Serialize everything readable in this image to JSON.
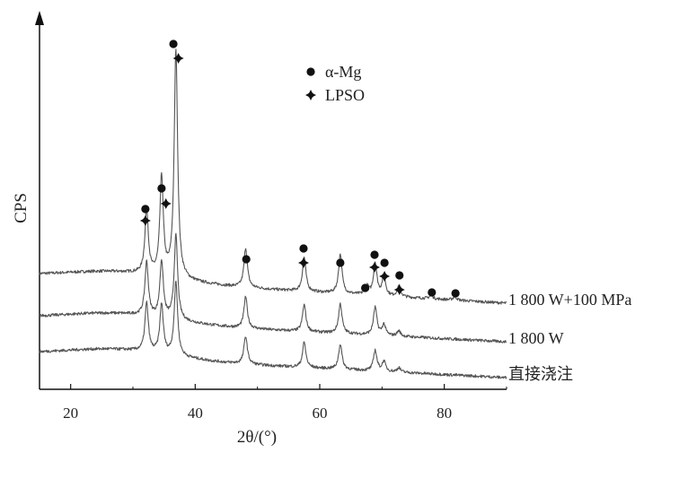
{
  "chart_data": {
    "type": "line",
    "title": "",
    "xlabel": "2θ/(°)",
    "ylabel": "CPS",
    "xlim": [
      15,
      90
    ],
    "x_ticks": [
      20,
      40,
      60,
      80
    ],
    "y_ticks": [],
    "grid": false,
    "legend": {
      "placement": "top-center",
      "entries": [
        {
          "marker": "circle",
          "label": "α-Mg"
        },
        {
          "marker": "diamond-cross",
          "label": "LPSO"
        }
      ]
    },
    "series": [
      {
        "name": "1 800 W+100 MPa",
        "baseline_cps": 130,
        "end_cps": 100,
        "peaks": [
          {
            "x": 32.2,
            "height": 72
          },
          {
            "x": 34.6,
            "height": 110
          },
          {
            "x": 36.9,
            "height": 255
          },
          {
            "x": 48.1,
            "height": 44
          },
          {
            "x": 57.5,
            "height": 38
          },
          {
            "x": 63.3,
            "height": 44
          },
          {
            "x": 67.6,
            "height": 9
          },
          {
            "x": 68.9,
            "height": 36
          },
          {
            "x": 70.3,
            "height": 22
          },
          {
            "x": 72.7,
            "height": 12
          },
          {
            "x": 77.9,
            "height": 4
          },
          {
            "x": 81.7,
            "height": 4
          }
        ]
      },
      {
        "name": "1 800 W",
        "baseline_cps": 83,
        "end_cps": 57,
        "peaks": [
          {
            "x": 32.2,
            "height": 60
          },
          {
            "x": 34.6,
            "height": 63
          },
          {
            "x": 36.9,
            "height": 94
          },
          {
            "x": 48.1,
            "height": 35
          },
          {
            "x": 57.5,
            "height": 30
          },
          {
            "x": 63.3,
            "height": 33
          },
          {
            "x": 68.9,
            "height": 31
          },
          {
            "x": 70.3,
            "height": 12
          },
          {
            "x": 72.7,
            "height": 6
          }
        ]
      },
      {
        "name": "直接浇注",
        "baseline_cps": 43,
        "end_cps": 17,
        "peaks": [
          {
            "x": 32.2,
            "height": 54
          },
          {
            "x": 34.6,
            "height": 55
          },
          {
            "x": 36.9,
            "height": 82
          },
          {
            "x": 48.1,
            "height": 31
          },
          {
            "x": 57.5,
            "height": 28
          },
          {
            "x": 63.3,
            "height": 28
          },
          {
            "x": 68.9,
            "height": 23
          },
          {
            "x": 70.3,
            "height": 11
          },
          {
            "x": 72.7,
            "height": 5
          }
        ]
      }
    ],
    "annotations": [
      {
        "marker": "circle",
        "x": 32.0,
        "cps": 201
      },
      {
        "marker": "diamond-cross",
        "x": 32.0,
        "cps": 188
      },
      {
        "marker": "circle",
        "x": 34.6,
        "cps": 224
      },
      {
        "marker": "diamond-cross",
        "x": 35.3,
        "cps": 207
      },
      {
        "marker": "circle",
        "x": 36.5,
        "cps": 385
      },
      {
        "marker": "diamond-cross",
        "x": 37.3,
        "cps": 369
      },
      {
        "marker": "circle",
        "x": 48.2,
        "cps": 145
      },
      {
        "marker": "circle",
        "x": 57.4,
        "cps": 157
      },
      {
        "marker": "diamond-cross",
        "x": 57.4,
        "cps": 141
      },
      {
        "marker": "circle",
        "x": 63.3,
        "cps": 141
      },
      {
        "marker": "circle",
        "x": 67.3,
        "cps": 113
      },
      {
        "marker": "circle",
        "x": 68.8,
        "cps": 150
      },
      {
        "marker": "diamond-cross",
        "x": 68.8,
        "cps": 136
      },
      {
        "marker": "circle",
        "x": 70.4,
        "cps": 141
      },
      {
        "marker": "diamond-cross",
        "x": 70.4,
        "cps": 126
      },
      {
        "marker": "circle",
        "x": 72.8,
        "cps": 127
      },
      {
        "marker": "diamond-cross",
        "x": 72.8,
        "cps": 111
      },
      {
        "marker": "circle",
        "x": 78.0,
        "cps": 108
      },
      {
        "marker": "circle",
        "x": 81.8,
        "cps": 107
      }
    ],
    "line_color": "#555555",
    "marker_color": "#111111"
  }
}
